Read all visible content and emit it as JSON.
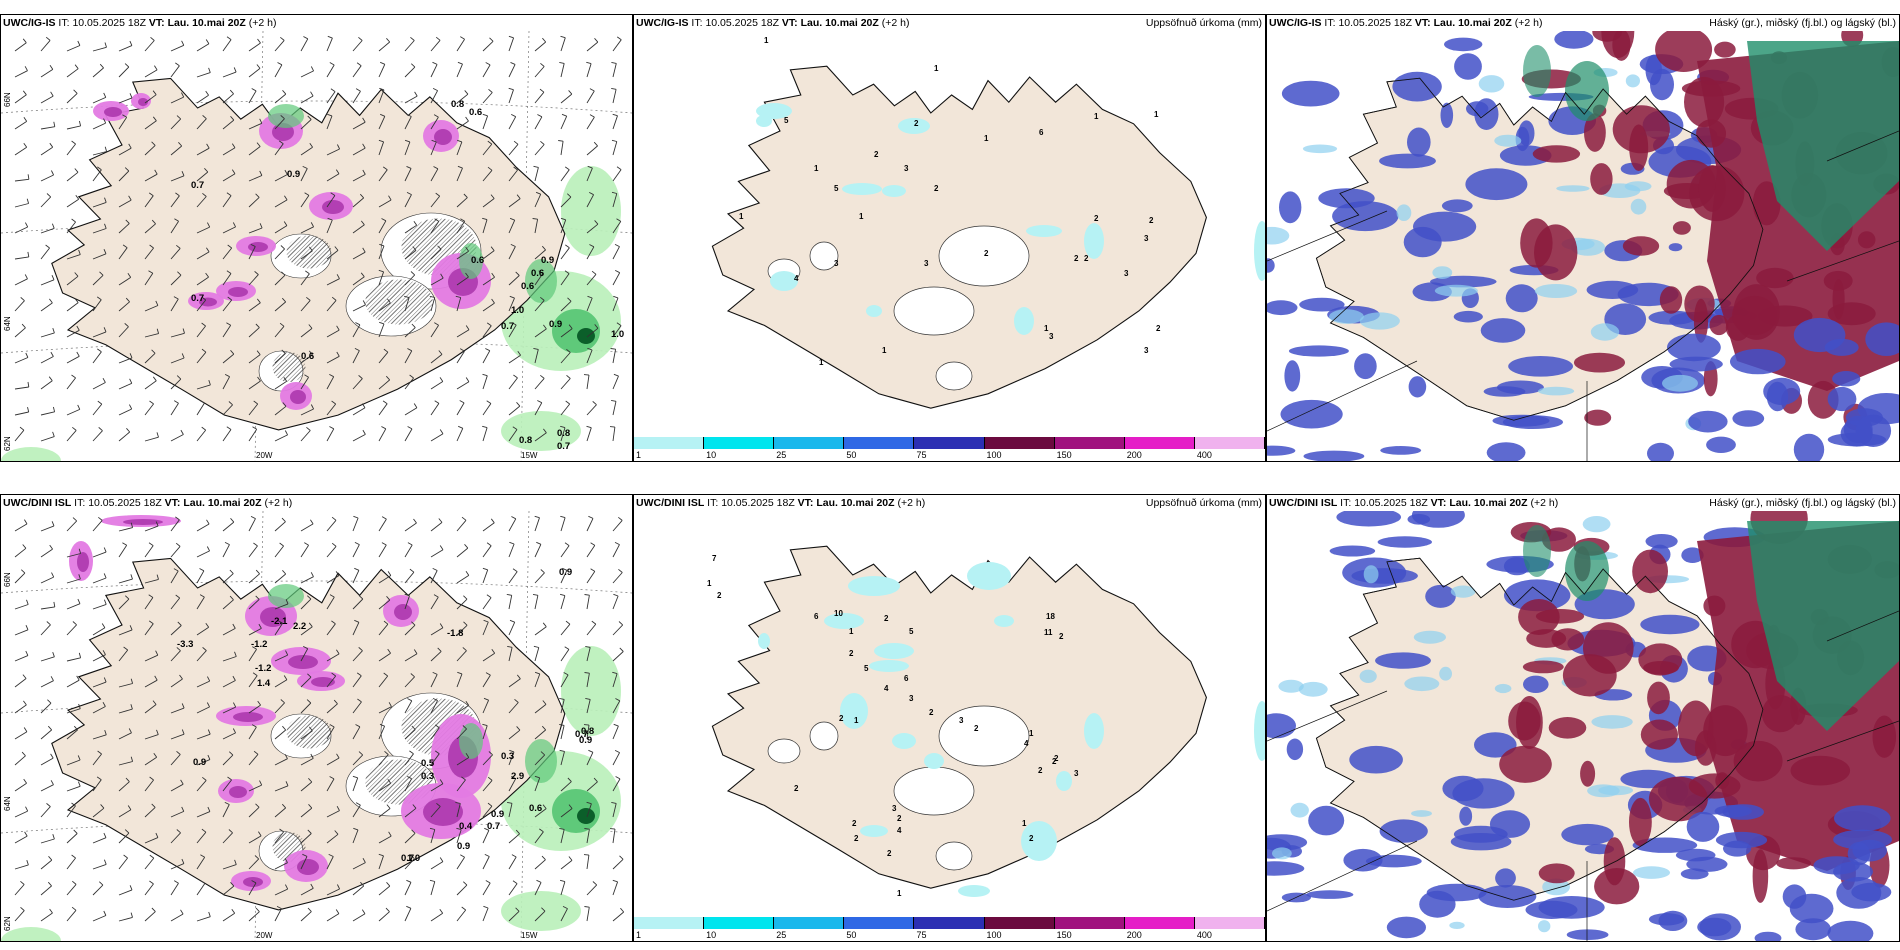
{
  "colors": {
    "land": "#f2e6d9",
    "precip_green_light": "#b9efb9",
    "precip_green": "#5fc97a",
    "precip_green_dark": "#0b5f2a",
    "precip_pink": "#e37ae3",
    "precip_magenta": "#b23fb3",
    "cloud_high": "#1f8f6a",
    "cloud_mid": "#8b1b3d",
    "cloud_low": "#4250c8",
    "cloud_low_light": "#8fd0f0"
  },
  "colorbar": {
    "labels": [
      "1",
      "10",
      "25",
      "50",
      "75",
      "100",
      "150",
      "200",
      "400"
    ],
    "colors": [
      "#b6f2f4",
      "#00e5ee",
      "#19b8ec",
      "#2f68e5",
      "#2c2fb3",
      "#6b0a3f",
      "#a0127e",
      "#e51ec7",
      "#f0b2ee"
    ]
  },
  "rows": [
    {
      "id": "row-1",
      "panels": [
        {
          "kind": "wind",
          "model": "UWC/IG-IS",
          "it_label": "IT:",
          "it_value": "10.05.2025 18Z",
          "vt_label": "VT:",
          "vt_value": "Lau. 10.mai 20Z",
          "lead": "(+2 h)",
          "right_title": "",
          "lat_labels": [
            "66N",
            "64N",
            "62N"
          ],
          "lon_labels": [
            "20W",
            "15W"
          ],
          "values": [
            "0.8",
            "0.6",
            "0.9",
            "0.7",
            "0.7",
            "0.9",
            "1.0",
            "0.9",
            "0.7",
            "0.6",
            "1.0",
            "0.8",
            "0.8",
            "0.7",
            "0.6",
            "0.6",
            "0.6"
          ]
        },
        {
          "kind": "precip",
          "model": "UWC/IG-IS",
          "it_label": "IT:",
          "it_value": "10.05.2025 18Z",
          "vt_label": "VT:",
          "vt_value": "Lau. 10.mai 20Z",
          "lead": "(+2 h)",
          "right_title": "Uppsöfnuð úrkoma (mm)",
          "values": [
            "1",
            "1",
            "1",
            "1",
            "5",
            "2",
            "6",
            "1",
            "2",
            "1",
            "5",
            "3",
            "2",
            "1",
            "1",
            "2",
            "2",
            "2",
            "2",
            "3",
            "3",
            "4",
            "2",
            "3",
            "3",
            "1",
            "3",
            "2",
            "3",
            "1",
            "1"
          ]
        },
        {
          "kind": "cloud",
          "model": "UWC/IG-IS",
          "it_label": "IT:",
          "it_value": "10.05.2025 18Z",
          "vt_label": "VT:",
          "vt_value": "Lau. 10.mai 20Z",
          "lead": "(+2 h)",
          "right_title": "Háský (gr.), miðský (fj.bl.) og lágský (bl.)"
        }
      ]
    },
    {
      "id": "row-2",
      "panels": [
        {
          "kind": "wind",
          "model": "UWC/DINI ISL",
          "it_label": "IT:",
          "it_value": "10.05.2025 18Z",
          "vt_label": "VT:",
          "vt_value": "Lau. 10.mai 20Z",
          "lead": "(+2 h)",
          "right_title": "",
          "lat_labels": [
            "66N",
            "64N",
            "62N"
          ],
          "lon_labels": [
            "20W",
            "15W"
          ],
          "values": [
            "-2.1",
            "-1.2",
            "2.2",
            "-1.8",
            "0.9",
            "-3.3",
            "-1.2",
            "1.4",
            "0.9",
            "0.5",
            "0.3",
            "0.3",
            "0.4",
            "0.7",
            "0.6",
            "0.7",
            "0.8",
            "2.9",
            "0.9",
            "1.0",
            "0.9",
            "0.7",
            "0.9"
          ]
        },
        {
          "kind": "precip",
          "model": "UWC/DINI ISL",
          "it_label": "IT:",
          "it_value": "10.05.2025 18Z",
          "vt_label": "VT:",
          "vt_value": "Lau. 10.mai 20Z",
          "lead": "(+2 h)",
          "right_title": "Uppsöfnuð úrkoma (mm)",
          "values": [
            "7",
            "1",
            "2",
            "6",
            "10",
            "1",
            "2",
            "5",
            "18",
            "11",
            "2",
            "2",
            "5",
            "4",
            "6",
            "3",
            "2",
            "2",
            "2",
            "3",
            "1",
            "4",
            "2",
            "2",
            "3",
            "2",
            "1",
            "2",
            "2",
            "4",
            "2",
            "2",
            "2",
            "3",
            "1",
            "1",
            "2"
          ]
        },
        {
          "kind": "cloud",
          "model": "UWC/DINI ISL",
          "it_label": "IT:",
          "it_value": "10.05.2025 18Z",
          "vt_label": "VT:",
          "vt_value": "Lau. 10.mai 20Z",
          "lead": "(+2 h)",
          "right_title": "Háský (gr.), miðský (fj.bl.) og lágský (bl.)"
        }
      ]
    }
  ]
}
